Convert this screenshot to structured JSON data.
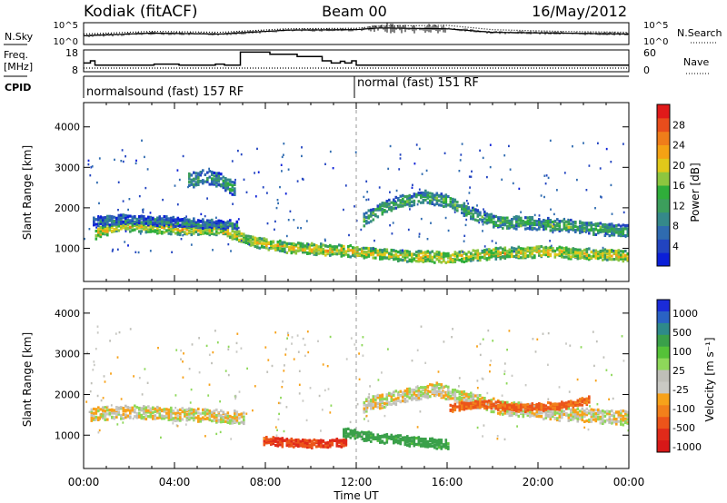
{
  "chart_data": [
    {
      "type": "line",
      "name": "summary-top",
      "header": {
        "station": "Kodiak (fitACF)",
        "beam": "Beam 00",
        "date": "16/May/2012"
      },
      "left_labels": {
        "nsky": "N.Sky",
        "freq": "Freq.",
        "freq_unit": "[MHz]",
        "cpid": "CPID"
      },
      "right_labels": {
        "nsearch": "N.Search",
        "nave": "Nave"
      },
      "noise_ticks_left": [
        "10^5",
        "10^0"
      ],
      "noise_ticks_right": [
        "10^5",
        "10^0"
      ],
      "freq_ticks": [
        "18",
        "8"
      ],
      "nave_ticks": [
        "60",
        "0"
      ],
      "cpid_segments": [
        {
          "label": "normalsound (fast) 157 RF",
          "x_start_hour": 0,
          "x_end_hour": 12
        },
        {
          "label": "normal (fast) 151 RF",
          "x_start_hour": 12,
          "x_end_hour": 24
        }
      ],
      "freq_steps_mhz": [
        [
          0,
          12
        ],
        [
          0.3,
          13
        ],
        [
          0.5,
          11
        ],
        [
          2,
          11
        ],
        [
          3.1,
          11.5
        ],
        [
          4.2,
          11
        ],
        [
          5.8,
          11.5
        ],
        [
          6.2,
          11
        ],
        [
          6.9,
          17
        ],
        [
          8,
          17
        ],
        [
          8.2,
          16
        ],
        [
          9.2,
          16
        ],
        [
          9.4,
          15
        ],
        [
          10.3,
          15
        ],
        [
          10.5,
          13
        ],
        [
          10.9,
          12
        ],
        [
          11.3,
          12.8
        ],
        [
          11.5,
          12
        ],
        [
          11.8,
          13
        ],
        [
          12,
          11
        ],
        [
          24,
          11
        ]
      ],
      "nave_series": [
        [
          0,
          10
        ],
        [
          24,
          10
        ]
      ],
      "nsky_trend": [
        [
          0,
          2
        ],
        [
          3,
          2.6
        ],
        [
          6,
          2.4
        ],
        [
          9,
          3.3
        ],
        [
          12,
          3.4
        ],
        [
          13,
          3.8
        ],
        [
          16,
          3.6
        ],
        [
          18,
          2.8
        ],
        [
          21,
          2.6
        ],
        [
          24,
          2.4
        ]
      ],
      "nsearch_trend": [
        [
          0,
          2.4
        ],
        [
          3,
          3
        ],
        [
          6,
          2.8
        ],
        [
          9,
          3.6
        ],
        [
          12,
          3.7
        ],
        [
          13,
          4.2
        ],
        [
          16,
          4.4
        ],
        [
          18,
          3.4
        ],
        [
          21,
          3
        ],
        [
          24,
          2.8
        ]
      ]
    },
    {
      "type": "heatmap",
      "name": "power",
      "ylabel": "Slant Range [km]",
      "ylim": [
        180,
        4600
      ],
      "yticks": [
        1000,
        2000,
        3000,
        4000
      ],
      "xlim": [
        0,
        24
      ],
      "colorbar": {
        "label": "Power [dB]",
        "ticks": [
          4,
          8,
          12,
          16,
          20,
          24,
          28
        ],
        "range": [
          0,
          32
        ],
        "colors": [
          "#0b1fd8",
          "#2244c0",
          "#2f6bb0",
          "#35898a",
          "#3c9e5c",
          "#2fae3a",
          "#8dc63f",
          "#e0c81a",
          "#f4a214",
          "#ef7d1a",
          "#e84d1c",
          "#e01a1a"
        ]
      },
      "bands": [
        {
          "hours": [
            [
              0.5,
              1400
            ],
            [
              1.5,
              1600
            ],
            [
              3,
              1550
            ],
            [
              4.5,
              1500
            ],
            [
              6,
              1500
            ],
            [
              6.5,
              1400
            ],
            [
              7.5,
              1200
            ],
            [
              9,
              1050
            ],
            [
              10.5,
              1000
            ],
            [
              12,
              950
            ],
            [
              14,
              850
            ],
            [
              16,
              800
            ],
            [
              18,
              900
            ],
            [
              20,
              950
            ],
            [
              22,
              900
            ],
            [
              24,
              850
            ]
          ],
          "width": 220,
          "power": 20
        },
        {
          "hours": [
            [
              12.2,
              1700
            ],
            [
              13,
              2000
            ],
            [
              14,
              2200
            ],
            [
              15,
              2300
            ],
            [
              16,
              2200
            ],
            [
              17,
              1900
            ],
            [
              18,
              1700
            ],
            [
              19.5,
              1650
            ],
            [
              21,
              1600
            ],
            [
              23,
              1500
            ],
            [
              24,
              1450
            ]
          ],
          "width": 250,
          "power": 14
        },
        {
          "hours": [
            [
              0.4,
              1700
            ],
            [
              2,
              1750
            ],
            [
              3.5,
              1700
            ],
            [
              5,
              1650
            ],
            [
              6.7,
              1600
            ]
          ],
          "width": 180,
          "power": 10
        },
        {
          "hours": [
            [
              4.6,
              2700
            ],
            [
              5.3,
              2800
            ],
            [
              6,
              2700
            ],
            [
              6.6,
              2500
            ]
          ],
          "width": 300,
          "power": 12
        }
      ]
    },
    {
      "type": "heatmap",
      "name": "velocity",
      "ylabel": "Slant Range [km]",
      "xlabel": "Time UT",
      "ylim": [
        180,
        4600
      ],
      "yticks": [
        1000,
        2000,
        3000,
        4000
      ],
      "xlim": [
        0,
        24
      ],
      "xticklabels": [
        "00:00",
        "04:00",
        "08:00",
        "12:00",
        "16:00",
        "20:00",
        "00:00"
      ],
      "colorbar": {
        "label": "Velocity [m s⁻¹]",
        "ticks": [
          "1000",
          "500",
          "100",
          "25",
          "-25",
          "-100",
          "-500",
          "-1000"
        ],
        "colors": [
          "#1a2bd8",
          "#2a62c4",
          "#2e8a8a",
          "#3aa04a",
          "#55c238",
          "#8ed85a",
          "#bfbfb8",
          "#c9c9c4",
          "#f7a21a",
          "#f2801b",
          "#ec541a",
          "#e02a1a",
          "#d81818"
        ]
      },
      "bands": [
        {
          "hours": [
            [
              0.3,
              1550
            ],
            [
              2,
              1600
            ],
            [
              4,
              1550
            ],
            [
              6,
              1500
            ],
            [
              7,
              1450
            ]
          ],
          "width": 260,
          "velocity": 0
        },
        {
          "hours": [
            [
              7.8,
              900
            ],
            [
              9,
              850
            ],
            [
              10.5,
              820
            ],
            [
              11.5,
              850
            ]
          ],
          "width": 160,
          "velocity": -300
        },
        {
          "hours": [
            [
              11.3,
              1100
            ],
            [
              12,
              1050
            ],
            [
              13,
              950
            ],
            [
              14,
              900
            ],
            [
              15,
              850
            ],
            [
              16,
              800
            ]
          ],
          "width": 180,
          "velocity": 150
        },
        {
          "hours": [
            [
              12.2,
              1750
            ],
            [
              14,
              2000
            ],
            [
              15.5,
              2150
            ],
            [
              17,
              1900
            ],
            [
              18.5,
              1700
            ],
            [
              21,
              1550
            ],
            [
              24,
              1450
            ]
          ],
          "width": 280,
          "velocity": 0
        },
        {
          "hours": [
            [
              16,
              1700
            ],
            [
              17.5,
              1800
            ],
            [
              19,
              1700
            ],
            [
              21,
              1750
            ],
            [
              22.3,
              1900
            ]
          ],
          "width": 140,
          "velocity": -120
        }
      ]
    }
  ]
}
